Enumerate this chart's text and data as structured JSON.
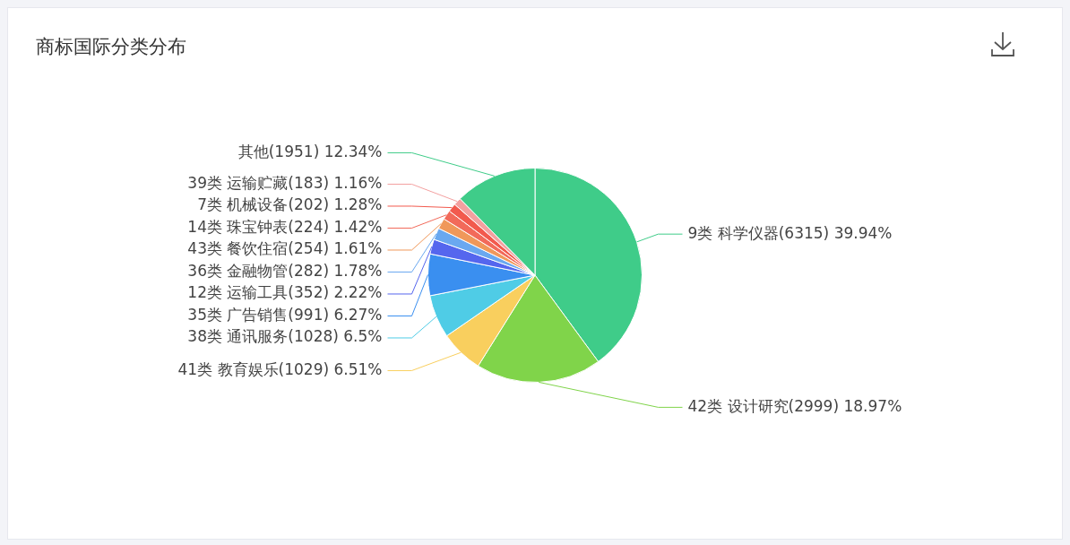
{
  "chart_data": {
    "type": "pie",
    "title": "商标国际分类分布",
    "categories": [
      "9类 科学仪器",
      "42类 设计研究",
      "41类 教育娱乐",
      "38类 通讯服务",
      "35类 广告销售",
      "12类 运输工具",
      "36类 金融物管",
      "43类 餐饮住宿",
      "14类 珠宝钟表",
      "7类 机械设备",
      "39类 运输贮藏",
      "其他"
    ],
    "values": [
      6315,
      2999,
      1029,
      1028,
      991,
      352,
      282,
      254,
      224,
      202,
      183,
      1951
    ],
    "value_labels": [
      "(6315) 39.94%",
      "(2999) 18.97%",
      "(1029) 6.51%",
      "(1028) 6.5%",
      "(991) 6.27%",
      "(352) 2.22%",
      "(282) 1.78%",
      "(254) 1.61%",
      "(224) 1.42%",
      "(202) 1.28%",
      "(183) 1.16%",
      "(1951) 12.34%"
    ],
    "colors": [
      "#3fcc89",
      "#80d44a",
      "#f9cf5e",
      "#4fcce6",
      "#3a8ff0",
      "#5566ee",
      "#6aa8f0",
      "#f0985a",
      "#f26a5a",
      "#f25a4e",
      "#f3a0a0",
      "#3fcc89"
    ],
    "legend": false
  }
}
